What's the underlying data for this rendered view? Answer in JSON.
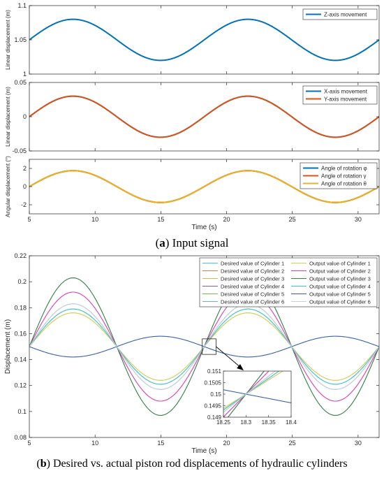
{
  "captions": {
    "a": {
      "letter": "a",
      "text": "Input signal"
    },
    "b": {
      "letter": "b",
      "text": "Desired vs. actual piston rod displacements of hydraulic cylinders"
    }
  },
  "colors": {
    "blue": "#0072BD",
    "orange": "#D95319",
    "yellow": "#EDB120",
    "cyl": [
      "#4DBEEE",
      "#D97A5A",
      "#E0B840",
      "#8E5AA8",
      "#7DB84A",
      "#5AB5E8",
      "#D4D05A",
      "#E040C0",
      "#2E8B3E",
      "#3FC2C8",
      "#3D5FA8",
      "#C8CCEA"
    ]
  },
  "chart_data": [
    {
      "type": "line",
      "ylabel": "Linear displacement  (m)",
      "xlim": [
        5,
        31.6
      ],
      "ylim": [
        1,
        1.1
      ],
      "yticks": [
        1,
        1.05,
        1.1
      ],
      "yticklabels": [
        "1",
        "1.05",
        "1.1"
      ],
      "xtick_labels_shown": false,
      "series": [
        {
          "name": "Z-axis movement",
          "amplitude": 0.03,
          "offset": 1.05,
          "period": 13.3,
          "start": 5,
          "phase": "sin"
        }
      ]
    },
    {
      "type": "line",
      "ylabel": "Linear displacement  (m)",
      "xlim": [
        5,
        31.6
      ],
      "ylim": [
        -0.05,
        0.05
      ],
      "yticks": [
        -0.05,
        0,
        0.05
      ],
      "yticklabels": [
        "-0.05",
        "0",
        "0.05"
      ],
      "xtick_labels_shown": false,
      "series": [
        {
          "name": "X-axis movement",
          "amplitude": 0.03,
          "offset": 0,
          "period": 13.3,
          "start": 5,
          "phase": "sin"
        },
        {
          "name": "Y-axis movement",
          "amplitude": 0.03,
          "offset": 0,
          "period": 13.3,
          "start": 5,
          "phase": "sin"
        }
      ]
    },
    {
      "type": "line",
      "ylabel": "Angular displacement  (°)",
      "xlabel": "Time  (s)",
      "xlim": [
        5,
        31.6
      ],
      "ylim": [
        -3,
        3
      ],
      "yticks": [
        -2,
        0,
        2
      ],
      "yticklabels": [
        "-2",
        "0",
        "2"
      ],
      "xticks": [
        5,
        10,
        15,
        20,
        25,
        30
      ],
      "series": [
        {
          "name": "Angle of rotation φ",
          "amplitude": 1.75,
          "offset": 0,
          "period": 13.3,
          "start": 5,
          "phase": "sin"
        },
        {
          "name": "Angle of rotation γ",
          "amplitude": 1.75,
          "offset": 0,
          "period": 13.3,
          "start": 5,
          "phase": "sin"
        },
        {
          "name": "Angle of rotation θ",
          "amplitude": 1.75,
          "offset": 0,
          "period": 13.3,
          "start": 5,
          "phase": "sin"
        }
      ]
    },
    {
      "type": "line",
      "ylabel": "Displacement  (m)",
      "xlabel": "Time  (s)",
      "xlim": [
        5,
        31.6
      ],
      "ylim": [
        0.08,
        0.22
      ],
      "yticks": [
        0.08,
        0.1,
        0.12,
        0.14,
        0.16,
        0.18,
        0.2,
        0.22
      ],
      "yticklabels": [
        "0.08",
        "0.1",
        "0.12",
        "0.14",
        "0.16",
        "0.18",
        "0.2",
        "0.22"
      ],
      "xticks": [
        5,
        10,
        15,
        20,
        25,
        30
      ],
      "legend_ncol": 2,
      "series": [
        {
          "name": "Desired value of Cylinder 1",
          "amplitude": 0.029,
          "offset": 0.15,
          "period": 13.3,
          "start": 5,
          "phase": "sin"
        },
        {
          "name": "Desired value of Cylinder 2",
          "amplitude": 0.042,
          "offset": 0.15,
          "period": 13.3,
          "start": 5,
          "phase": "sin"
        },
        {
          "name": "Desired value of Cylinder 3",
          "amplitude": 0.026,
          "offset": 0.15,
          "period": 13.3,
          "start": 5,
          "phase": "sin"
        },
        {
          "name": "Desired value of Cylinder 4",
          "amplitude": 0.053,
          "offset": 0.15,
          "period": 13.3,
          "start": 5,
          "phase": "sin"
        },
        {
          "name": "Desired value of Cylinder 5",
          "amplitude": 0.033,
          "offset": 0.15,
          "period": 13.3,
          "start": 5,
          "phase": "sin"
        },
        {
          "name": "Desired value of Cylinder 6",
          "amplitude": 0.008,
          "offset": 0.15,
          "period": 13.3,
          "start": 5,
          "phase": "negsin"
        },
        {
          "name": "Output value of Cylinder 1",
          "amplitude": 0.026,
          "offset": 0.15,
          "period": 13.3,
          "start": 5,
          "phase": "sin"
        },
        {
          "name": "Output value of Cylinder 2",
          "amplitude": 0.042,
          "offset": 0.15,
          "period": 13.3,
          "start": 5,
          "phase": "sin"
        },
        {
          "name": "Output value of Cylinder 3",
          "amplitude": 0.053,
          "offset": 0.15,
          "period": 13.3,
          "start": 5,
          "phase": "sin"
        },
        {
          "name": "Output value of Cylinder 4",
          "amplitude": 0.029,
          "offset": 0.15,
          "period": 13.3,
          "start": 5,
          "phase": "sin"
        },
        {
          "name": "Output value of Cylinder 5",
          "amplitude": 0.008,
          "offset": 0.15,
          "period": 13.3,
          "start": 5,
          "phase": "negsin"
        },
        {
          "name": "Output value of Cylinder 6",
          "amplitude": 0.033,
          "offset": 0.15,
          "period": 13.3,
          "start": 5,
          "phase": "sin"
        }
      ],
      "inset": {
        "xlim": [
          18.25,
          18.4
        ],
        "ylim": [
          0.149,
          0.151
        ],
        "xticks": [
          18.25,
          18.3,
          18.35,
          18.4
        ],
        "xticklabels": [
          "18.25",
          "18.3",
          "18.35",
          "18.4"
        ],
        "yticks": [
          0.149,
          0.1495,
          0.15,
          0.1505,
          0.151
        ],
        "yticklabels": [
          "0.149",
          "0.1495",
          "0.15",
          "0.1505",
          "0.151"
        ]
      }
    }
  ]
}
